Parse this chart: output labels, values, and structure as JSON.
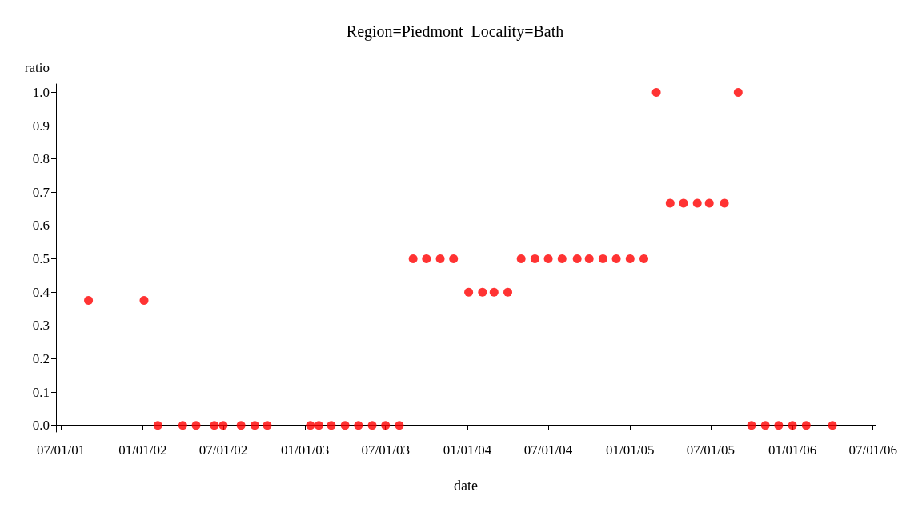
{
  "chart_data": {
    "type": "scatter",
    "title": "Region=Piedmont  Locality=Bath",
    "xlabel": "date",
    "ylabel": "ratio",
    "marker": "circle",
    "grid": false,
    "x": [
      "2001-09-01",
      "2002-01-04",
      "2002-02-04",
      "2002-04-01",
      "2002-05-01",
      "2002-06-11",
      "2002-07-01",
      "2002-08-10",
      "2002-09-10",
      "2002-10-08",
      "2003-01-13",
      "2003-02-01",
      "2003-03-01",
      "2003-04-01",
      "2003-05-01",
      "2003-06-01",
      "2003-07-01",
      "2003-08-01",
      "2003-09-01",
      "2003-10-01",
      "2003-11-01",
      "2003-12-01",
      "2004-01-04",
      "2004-02-04",
      "2004-03-01",
      "2004-04-01",
      "2004-05-01",
      "2004-06-01",
      "2004-07-01",
      "2004-08-01",
      "2004-09-04",
      "2004-10-01",
      "2004-11-01",
      "2004-12-01",
      "2005-01-01",
      "2005-02-01",
      "2005-03-01",
      "2005-04-01",
      "2005-05-01",
      "2005-06-01",
      "2005-06-28",
      "2005-08-01",
      "2005-09-01",
      "2005-10-01",
      "2005-11-01",
      "2005-12-01",
      "2006-01-01",
      "2006-02-01",
      "2006-04-01"
    ],
    "series": [
      {
        "color": "#ff0000",
        "values": [
          0.375,
          0.375,
          0,
          0,
          0,
          0,
          0,
          0,
          0,
          0,
          0,
          0,
          0,
          0,
          0,
          0,
          0,
          0,
          0.5,
          0.5,
          0.5,
          0.5,
          0.4,
          0.4,
          0.4,
          0.4,
          0.5,
          0.5,
          0.5,
          0.5,
          0.5,
          0.5,
          0.5,
          0.5,
          0.5,
          0.5,
          1.0,
          0.667,
          0.667,
          0.667,
          0.667,
          0.667,
          1.0,
          0,
          0,
          0,
          0,
          0,
          0
        ]
      }
    ],
    "xlim": [
      "2001-06-20",
      "2006-07-07"
    ],
    "xticks": [
      {
        "value": "2001-07-01",
        "label": "07/01/01"
      },
      {
        "value": "2002-01-01",
        "label": "01/01/02"
      },
      {
        "value": "2002-07-01",
        "label": "07/01/02"
      },
      {
        "value": "2003-01-01",
        "label": "01/01/03"
      },
      {
        "value": "2003-07-01",
        "label": "07/01/03"
      },
      {
        "value": "2004-01-01",
        "label": "01/01/04"
      },
      {
        "value": "2004-07-01",
        "label": "07/01/04"
      },
      {
        "value": "2005-01-01",
        "label": "01/01/05"
      },
      {
        "value": "2005-07-01",
        "label": "07/01/05"
      },
      {
        "value": "2006-01-01",
        "label": "01/01/06"
      },
      {
        "value": "2006-07-01",
        "label": "07/01/06"
      }
    ],
    "ylim": [
      -0.02,
      1.025
    ],
    "yticks": [
      {
        "value": 0,
        "label": "0.0"
      },
      {
        "value": 0.1,
        "label": "0.1"
      },
      {
        "value": 0.2,
        "label": "0.2"
      },
      {
        "value": 0.3,
        "label": "0.3"
      },
      {
        "value": 0.4,
        "label": "0.4"
      },
      {
        "value": 0.5,
        "label": "0.5"
      },
      {
        "value": 0.6,
        "label": "0.6"
      },
      {
        "value": 0.7,
        "label": "0.7"
      },
      {
        "value": 0.8,
        "label": "0.8"
      },
      {
        "value": 0.9,
        "label": "0.9"
      },
      {
        "value": 1,
        "label": "1.0"
      }
    ]
  }
}
